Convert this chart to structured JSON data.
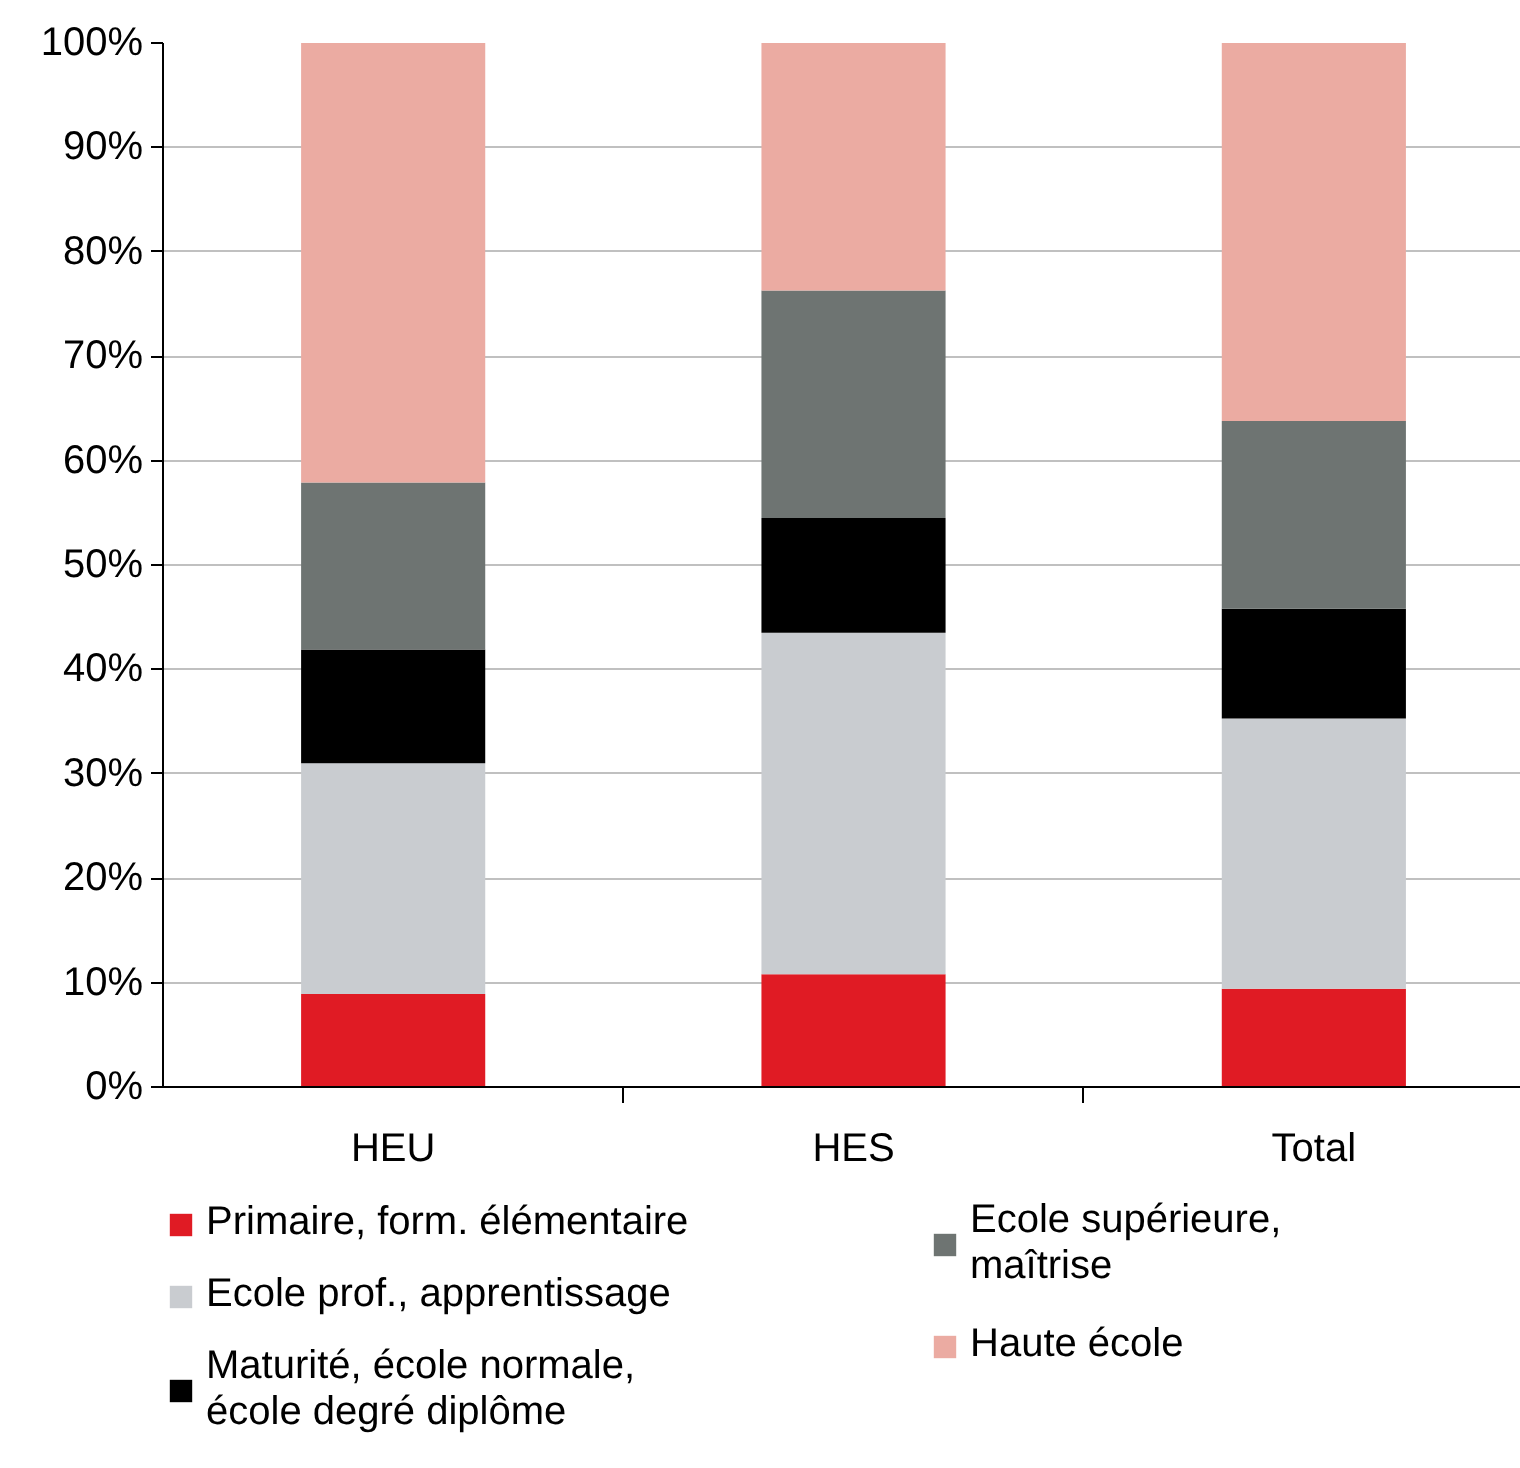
{
  "chart_data": {
    "type": "bar",
    "stacked": true,
    "categories": [
      "HEU",
      "HES",
      "Total"
    ],
    "series": [
      {
        "name": "Primaire, form. élémentaire",
        "color": "#e01b24",
        "values": [
          8.9,
          10.8,
          9.4
        ]
      },
      {
        "name": "Ecole prof., apprentissage",
        "color": "#c9ccd0",
        "values": [
          22.1,
          32.7,
          25.9
        ]
      },
      {
        "name": "Maturité, école normale, école degré diplôme",
        "color": "#000000",
        "values": [
          10.9,
          11.0,
          10.5
        ]
      },
      {
        "name": "Ecole supérieure, maîtrise",
        "color": "#6e7472",
        "values": [
          16.0,
          21.8,
          18.0
        ]
      },
      {
        "name": "Haute école",
        "color": "#ebaba2",
        "values": [
          42.1,
          23.7,
          36.2
        ]
      }
    ],
    "ylim": [
      0,
      100
    ],
    "yticks": [
      {
        "value": 0,
        "label": "0%"
      },
      {
        "value": 10,
        "label": "10%"
      },
      {
        "value": 20,
        "label": "20%"
      },
      {
        "value": 30,
        "label": "30%"
      },
      {
        "value": 40,
        "label": "40%"
      },
      {
        "value": 50,
        "label": "50%"
      },
      {
        "value": 60,
        "label": "60%"
      },
      {
        "value": 70,
        "label": "70%"
      },
      {
        "value": 80,
        "label": "80%"
      },
      {
        "value": 90,
        "label": "90%"
      },
      {
        "value": 100,
        "label": "100%"
      }
    ],
    "grid": "y",
    "legend": "bottom"
  }
}
